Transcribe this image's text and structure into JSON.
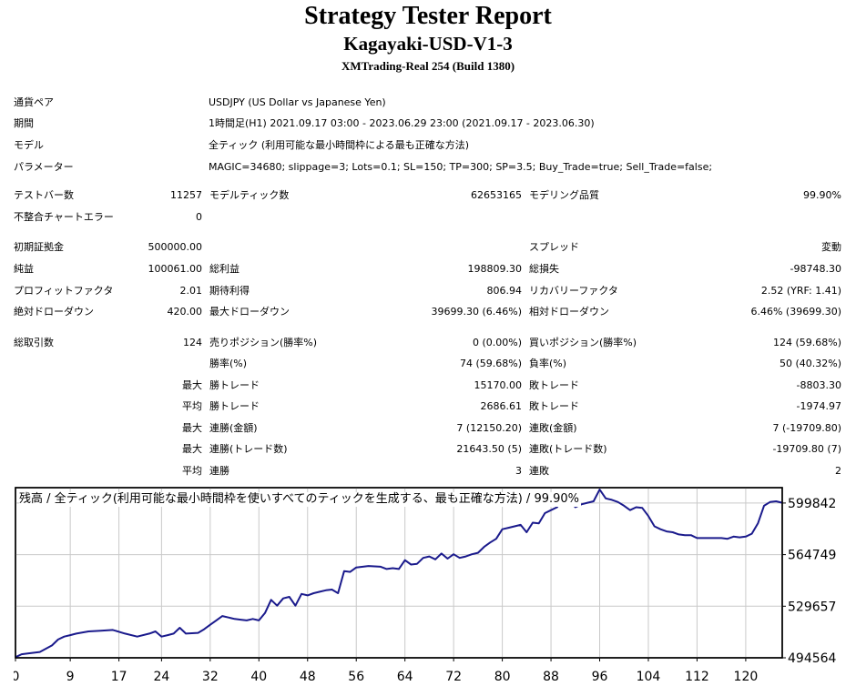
{
  "report": {
    "title": "Strategy Tester Report",
    "ea_name": "Kagayaki-USD-V1-3",
    "server": "XMTrading-Real 254 (Build 1380)"
  },
  "info": {
    "pair_label": "通貨ペア",
    "pair_value": "USDJPY (US Dollar vs Japanese Yen)",
    "period_label": "期間",
    "period_value": "1時間足(H1) 2021.09.17 03:00 - 2023.06.29 23:00 (2021.09.17 - 2023.06.30)",
    "model_label": "モデル",
    "model_value": "全ティック (利用可能な最小時間枠による最も正確な方法)",
    "params_label": "パラメーター",
    "params_value": "MAGIC=34680; slippage=3; Lots=0.1; SL=150; TP=300; SP=3.5; Buy_Trade=true; Sell_Trade=false;"
  },
  "stats": {
    "bars_label": "テストバー数",
    "bars_value": "11257",
    "ticks_label": "モデルティック数",
    "ticks_value": "62653165",
    "quality_label": "モデリング品質",
    "quality_value": "99.90%",
    "mismatch_label": "不整合チャートエラー",
    "mismatch_value": "0",
    "deposit_label": "初期証拠金",
    "deposit_value": "500000.00",
    "spread_label": "スプレッド",
    "spread_value": "変動",
    "net_label": "純益",
    "net_value": "100061.00",
    "gross_profit_label": "総利益",
    "gross_profit_value": "198809.30",
    "gross_loss_label": "総損失",
    "gross_loss_value": "-98748.30",
    "pf_label": "プロフィットファクタ",
    "pf_value": "2.01",
    "payoff_label": "期待利得",
    "payoff_value": "806.94",
    "rf_label": "リカバリーファクタ",
    "rf_value": "2.52 (YRF: 1.41)",
    "abs_dd_label": "絶対ドローダウン",
    "abs_dd_value": "420.00",
    "max_dd_label": "最大ドローダウン",
    "max_dd_value": "39699.30 (6.46%)",
    "rel_dd_label": "相対ドローダウン",
    "rel_dd_value": "6.46% (39699.30)",
    "trades_label": "総取引数",
    "trades_value": "124",
    "short_label": "売りポジション(勝率%)",
    "short_value": "0 (0.00%)",
    "long_label": "買いポジション(勝率%)",
    "long_value": "124 (59.68%)",
    "win_pct_label": "勝率(%)",
    "win_pct_value": "74 (59.68%)",
    "loss_pct_label": "負率(%)",
    "loss_pct_value": "50 (40.32%)",
    "max_label_1": "最大",
    "largest_win_label": "勝トレード",
    "largest_win_value": "15170.00",
    "largest_loss_label": "敗トレード",
    "largest_loss_value": "-8803.30",
    "avg_label_1": "平均",
    "avg_win_label": "勝トレード",
    "avg_win_value": "2686.61",
    "avg_loss_label": "敗トレード",
    "avg_loss_value": "-1974.97",
    "max_label_2": "最大",
    "cons_wins_amt_label": "連勝(金額)",
    "cons_wins_amt_value": "7 (12150.20)",
    "cons_losses_amt_label": "連敗(金額)",
    "cons_losses_amt_value": "7 (-19709.80)",
    "max_label_3": "最大",
    "cons_wins_trades_label": "連勝(トレード数)",
    "cons_wins_trades_value": "21643.50 (5)",
    "cons_losses_trades_label": "連敗(トレード数)",
    "cons_losses_trades_value": "-19709.80 (7)",
    "avg_label_2": "平均",
    "avg_cons_wins_label": "連勝",
    "avg_cons_wins_value": "3",
    "avg_cons_losses_label": "連敗",
    "avg_cons_losses_value": "2"
  },
  "chart_data": {
    "type": "line",
    "title": "残高 / 全ティック(利用可能な最小時間枠を使いすべてのティックを生成する、最も正確な方法) / 99.90%",
    "x_ticks": [
      0,
      9,
      17,
      24,
      32,
      40,
      48,
      56,
      64,
      72,
      80,
      88,
      96,
      104,
      112,
      120
    ],
    "y_ticks": [
      494564,
      529657,
      564749,
      599842
    ],
    "xlim": [
      0,
      126
    ],
    "ylim": [
      494564,
      610300
    ],
    "grid": true,
    "colors": {
      "line": "#1a1a8c",
      "grid": "#c9c9c9",
      "axis": "#000000"
    },
    "series": [
      {
        "x": [
          0,
          1,
          2,
          4,
          6,
          7,
          8,
          9,
          10,
          12,
          14,
          16,
          18,
          20,
          22,
          23,
          24,
          25,
          26,
          27,
          28,
          30,
          31,
          32,
          33,
          34,
          35,
          36,
          37,
          38,
          39,
          40,
          41,
          42,
          43,
          44,
          45,
          46,
          47,
          48,
          49,
          50,
          51,
          52,
          53,
          54,
          55,
          56,
          58,
          60,
          61,
          62,
          63,
          64,
          65,
          66,
          67,
          68,
          69,
          70,
          71,
          72,
          73,
          74,
          75,
          76,
          77,
          78,
          79,
          80,
          81,
          82,
          83,
          84,
          85,
          86,
          87,
          88,
          89,
          90,
          91,
          92,
          93,
          94,
          95,
          96,
          97,
          98,
          99,
          100,
          101,
          102,
          103,
          104,
          105,
          106,
          107,
          108,
          109,
          110,
          111,
          112,
          113,
          114,
          115,
          116,
          117,
          118,
          119,
          120,
          121,
          122,
          123,
          124,
          125,
          126
        ],
        "y": [
          495000,
          497000,
          497500,
          498500,
          503000,
          507000,
          509000,
          510000,
          511000,
          512500,
          513000,
          513500,
          511000,
          509000,
          511000,
          512500,
          509000,
          510000,
          511000,
          515000,
          511000,
          511500,
          514000,
          517000,
          520000,
          523000,
          522000,
          521000,
          520500,
          520000,
          521000,
          520000,
          525000,
          534000,
          530000,
          535000,
          536000,
          530000,
          538000,
          537000,
          538500,
          539500,
          540500,
          541000,
          538500,
          553500,
          553000,
          556000,
          557000,
          556500,
          555000,
          555500,
          555000,
          561000,
          558000,
          558500,
          562500,
          563500,
          561500,
          565500,
          562000,
          565000,
          562500,
          563500,
          565000,
          566000,
          570000,
          573000,
          575500,
          582000,
          583000,
          584000,
          585000,
          580000,
          586500,
          586000,
          593000,
          595000,
          597000,
          603000,
          602000,
          597000,
          599000,
          600000,
          601000,
          609000,
          603000,
          602000,
          600500,
          598000,
          595000,
          597000,
          596500,
          591000,
          584000,
          582000,
          580500,
          580000,
          578500,
          578000,
          578000,
          576000,
          576000,
          576000,
          576000,
          576000,
          575500,
          577000,
          576500,
          577000,
          579000,
          586000,
          598000,
          600500,
          601000,
          600000
        ]
      }
    ]
  }
}
